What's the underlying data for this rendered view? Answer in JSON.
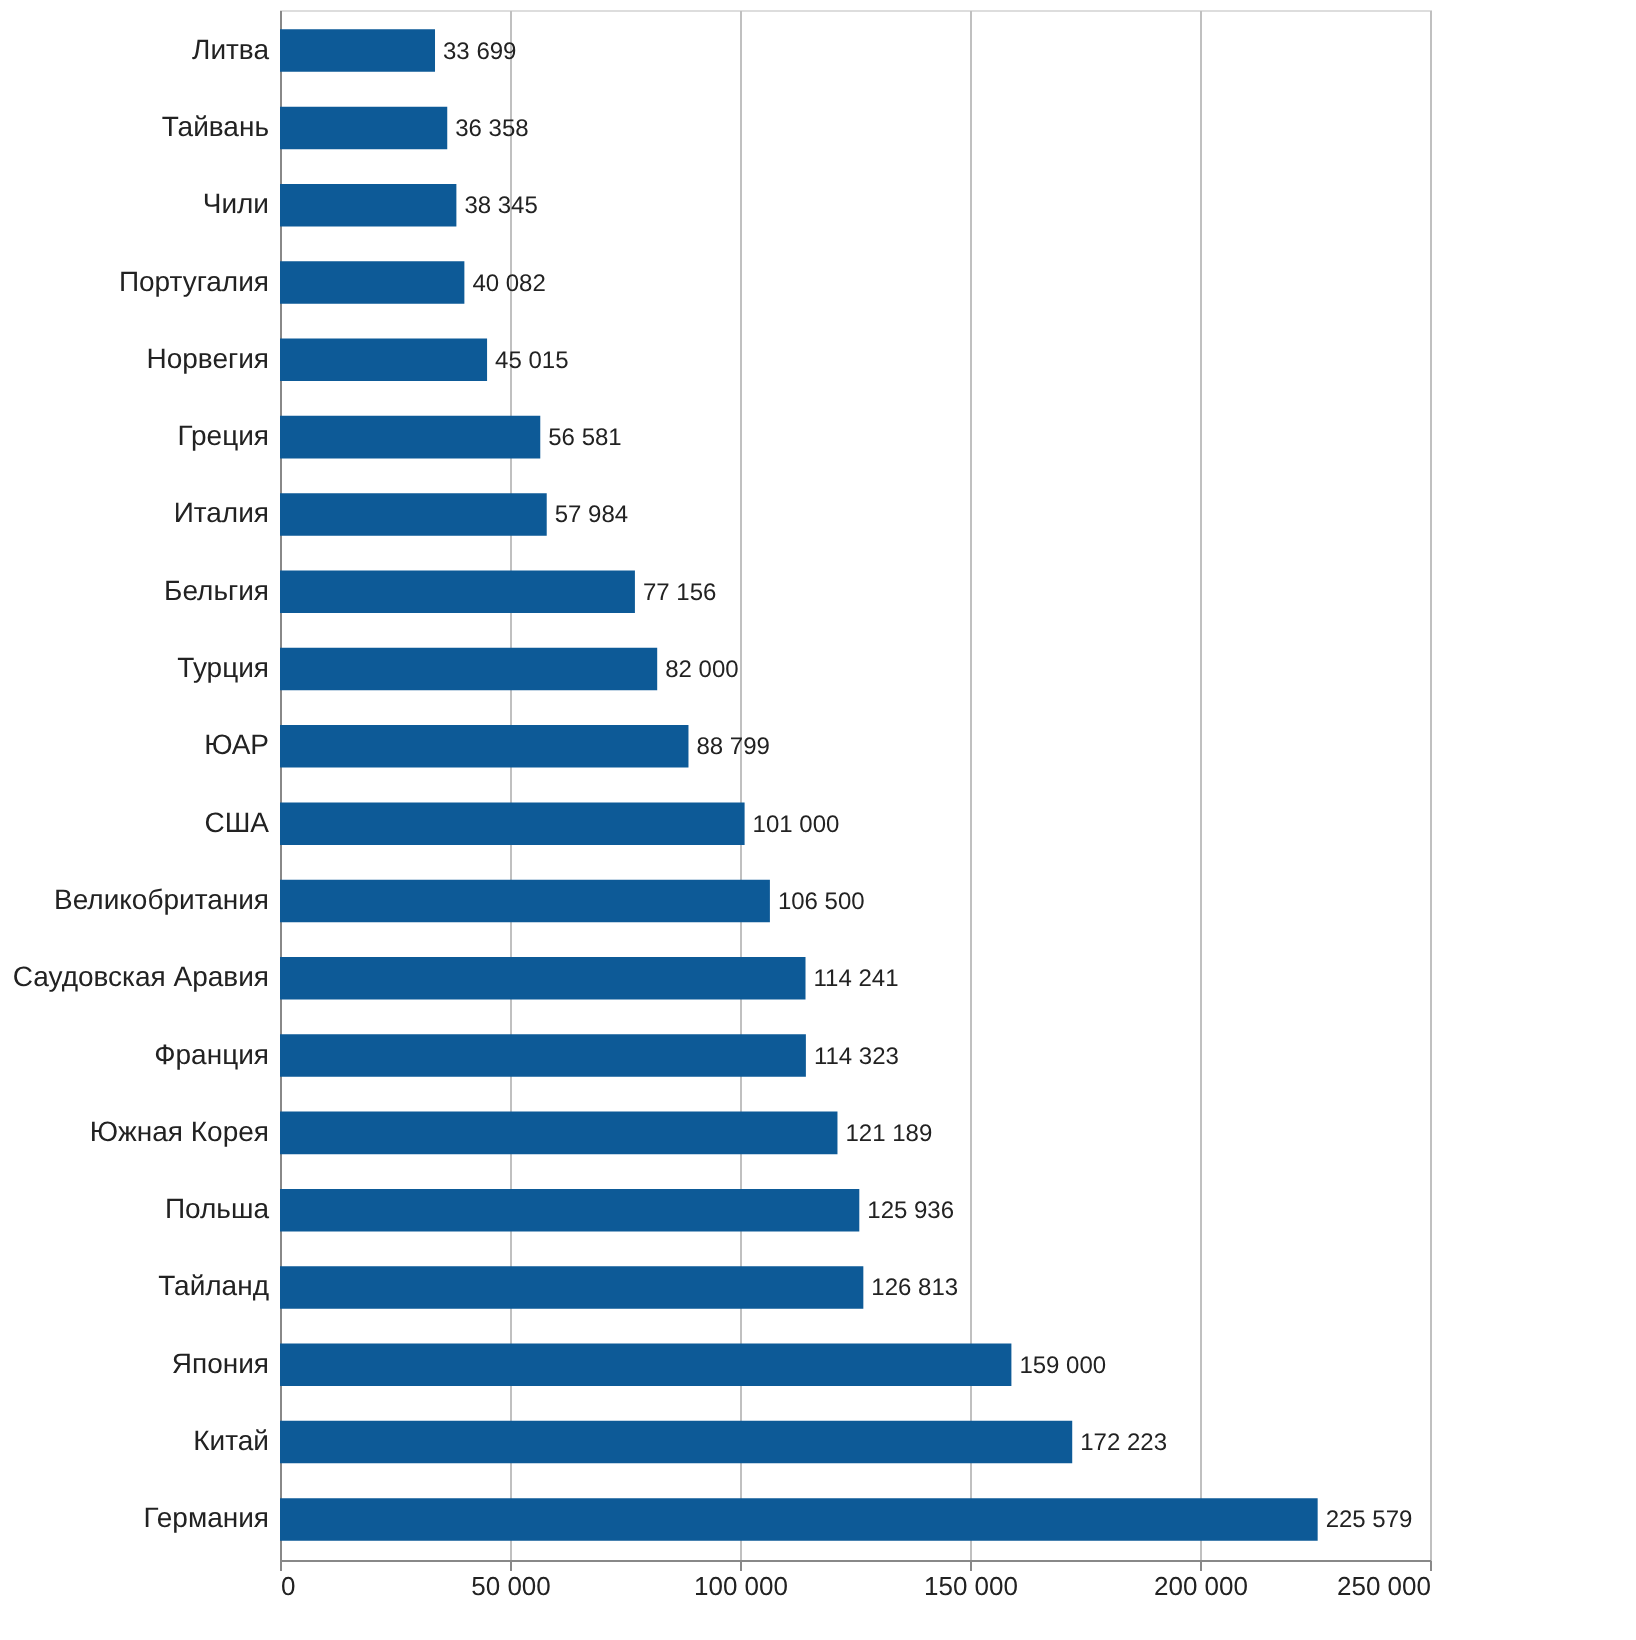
{
  "chart_data": {
    "type": "bar",
    "orientation": "horizontal",
    "categories": [
      "Литва",
      "Тайвань",
      "Чили",
      "Португалия",
      "Норвегия",
      "Греция",
      "Италия",
      "Бельгия",
      "Турция",
      "ЮАР",
      "США",
      "Великобритания",
      "Саудовская Аравия",
      "Франция",
      "Южная Корея",
      "Польша",
      "Тайланд",
      "Япония",
      "Китай",
      "Германия"
    ],
    "values": [
      33699,
      36358,
      38345,
      40082,
      45015,
      56581,
      57984,
      77156,
      82000,
      88799,
      101000,
      106500,
      114241,
      114323,
      121189,
      125936,
      126813,
      159000,
      172223,
      225579
    ],
    "value_labels": [
      "33 699",
      "36 358",
      "38 345",
      "40 082",
      "45 015",
      "56 581",
      "57 984",
      "77 156",
      "82 000",
      "88 799",
      "101 000",
      "106 500",
      "114 241",
      "114 323",
      "121 189",
      "125 936",
      "126 813",
      "159 000",
      "172 223",
      "225 579"
    ],
    "color": "#0d5a97",
    "xlim": [
      0,
      250000
    ],
    "xticks": [
      {
        "value": 0,
        "label": "0"
      },
      {
        "value": 50000,
        "label": "50 000"
      },
      {
        "value": 100000,
        "label": "100 000"
      },
      {
        "value": 150000,
        "label": "150 000"
      },
      {
        "value": 200000,
        "label": "200 000"
      },
      {
        "value": 250000,
        "label": "250 000"
      }
    ],
    "grid": "x"
  }
}
